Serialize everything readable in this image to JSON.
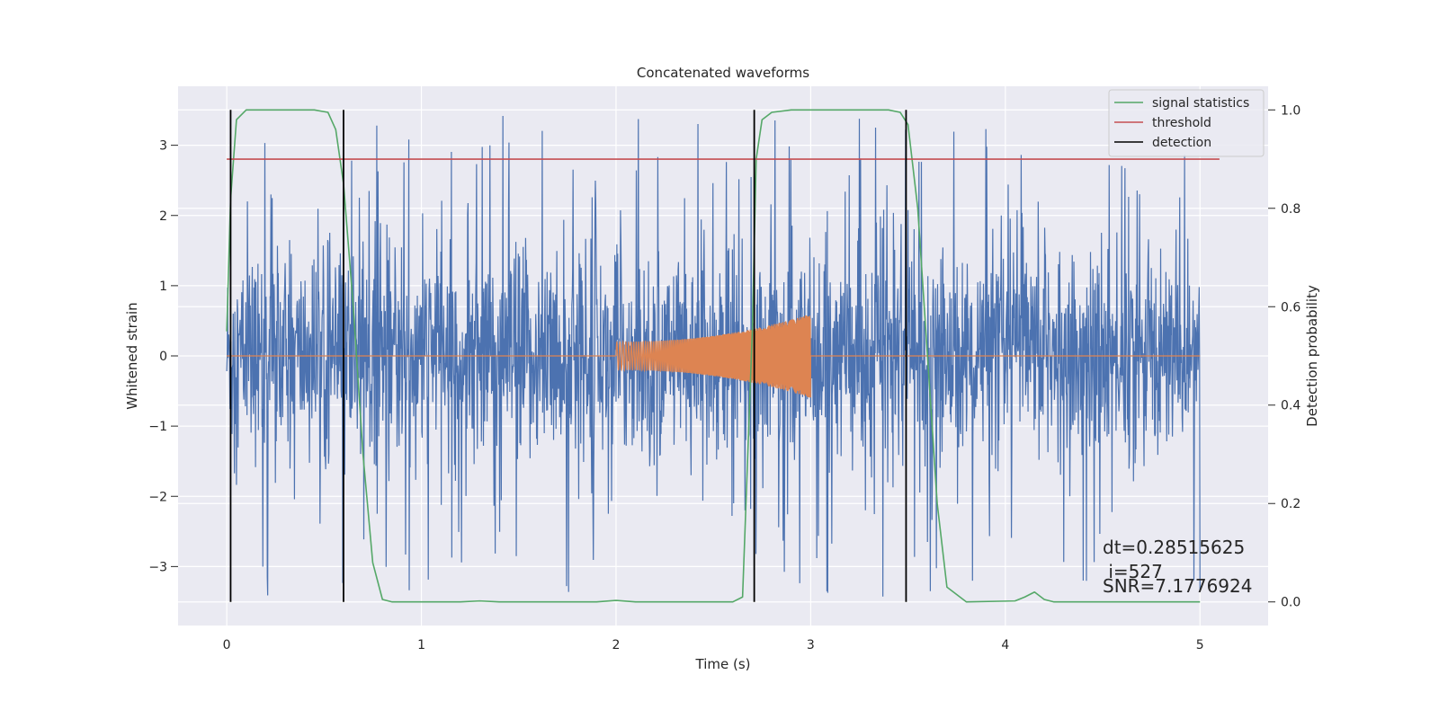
{
  "chart_data": {
    "type": "line",
    "title": "Concatenated waveforms",
    "xlabel": "Time (s)",
    "ylabel": "Whitened strain",
    "y2label": "Detection probability",
    "xlim": [
      -0.25,
      5.35
    ],
    "ylim": [
      -3.84,
      3.84
    ],
    "y2lim": [
      -0.048,
      1.048
    ],
    "xticks": [
      0,
      1,
      2,
      3,
      4,
      5
    ],
    "yticks": [
      -3,
      -2,
      -1,
      0,
      1,
      2,
      3
    ],
    "y2ticks": [
      0.0,
      0.2,
      0.4,
      0.6,
      0.8,
      1.0
    ],
    "xtick_labels": [
      "0",
      "1",
      "2",
      "3",
      "4",
      "5"
    ],
    "ytick_labels": [
      "−3",
      "−2",
      "−1",
      "0",
      "1",
      "2",
      "3"
    ],
    "y2tick_labels": [
      "0.0",
      "0.2",
      "0.4",
      "0.6",
      "0.8",
      "1.0"
    ],
    "grid": true,
    "legend_position": "top-right",
    "legend": [
      {
        "label": "signal statistics",
        "color": "#55a868"
      },
      {
        "label": "threshold",
        "color": "#c44e52"
      },
      {
        "label": "detection",
        "color": "#000000"
      }
    ],
    "noise": {
      "color": "#4c72b0",
      "t_start": 0.0,
      "t_end": 5.0,
      "envelope": 0.7,
      "peak_max": 3.45
    },
    "chirp": {
      "color": "#dd8452",
      "t_start": 2.0,
      "t_end": 3.0,
      "amp_start": 0.2,
      "amp_end": 0.6
    },
    "signal_statistics": {
      "axis": "right",
      "t": [
        0.0,
        0.02,
        0.05,
        0.1,
        0.45,
        0.52,
        0.56,
        0.6,
        0.65,
        0.7,
        0.75,
        0.8,
        0.85,
        1.2,
        1.3,
        1.4,
        1.9,
        2.0,
        2.1,
        2.6,
        2.65,
        2.7,
        2.72,
        2.75,
        2.8,
        2.9,
        3.4,
        3.46,
        3.5,
        3.55,
        3.6,
        3.65,
        3.7,
        3.8,
        4.05,
        4.1,
        4.15,
        4.2,
        4.25,
        4.3,
        5.0
      ],
      "p": [
        0.55,
        0.82,
        0.98,
        1.0,
        1.0,
        0.995,
        0.96,
        0.85,
        0.6,
        0.3,
        0.08,
        0.005,
        0.0,
        0.0,
        0.002,
        0.0,
        0.0,
        0.003,
        0.0,
        0.0,
        0.01,
        0.55,
        0.9,
        0.98,
        0.995,
        1.0,
        1.0,
        0.995,
        0.97,
        0.8,
        0.5,
        0.2,
        0.03,
        0.0,
        0.002,
        0.01,
        0.02,
        0.005,
        0.0,
        0.0,
        0.0
      ]
    },
    "threshold": {
      "axis": "right",
      "value": 0.9,
      "t_start": 0.0,
      "t_end": 5.1
    },
    "detections": [
      0.02,
      0.6,
      2.71,
      3.49
    ],
    "annotations": [
      "dt=0.28515625",
      " i=527",
      "SNR=7.1776924"
    ]
  }
}
